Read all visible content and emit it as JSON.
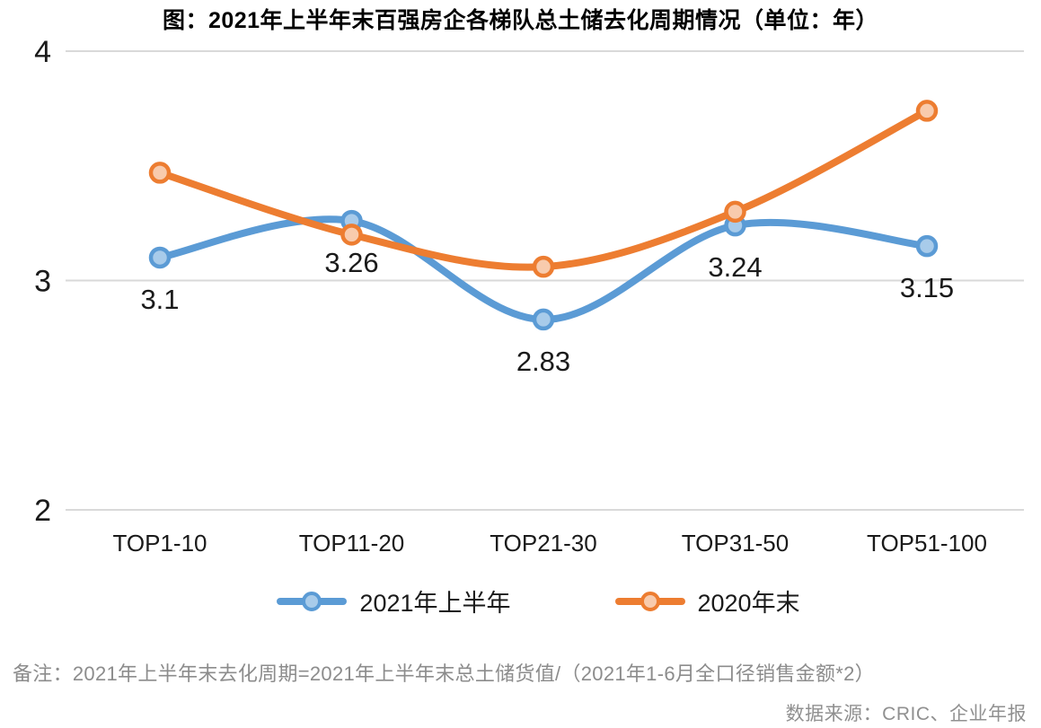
{
  "title": "图：2021年上半年末百强房企各梯队总土储去化周期情况（单位：年）",
  "footnote": "备注：2021年上半年末去化周期=2021年上半年末总土储货值/（2021年1-6月全口径销售金额*2）",
  "source": "数据来源：CRIC、企业年报",
  "colors": {
    "series_blue": "#5B9BD5",
    "series_blue_fill": "#A8CBEA",
    "series_orange": "#ED7D31",
    "series_orange_fill": "#F8CBAD",
    "gridline": "#D9D9D9",
    "axis_text": "#1a1a1a",
    "data_label": "#1a1a1a"
  },
  "chart_data": {
    "type": "line",
    "title": "图：2021年上半年末百强房企各梯队总土储去化周期情况（单位：年）",
    "categories": [
      "TOP1-10",
      "TOP11-20",
      "TOP21-30",
      "TOP31-50",
      "TOP51-100"
    ],
    "series": [
      {
        "name": "2021年上半年",
        "values": [
          3.1,
          3.26,
          2.83,
          3.24,
          3.15
        ],
        "data_labels": [
          "3.1",
          "3.26",
          "2.83",
          "3.24",
          "3.15"
        ],
        "color": "#5B9BD5",
        "marker_fill": "#A8CBEA"
      },
      {
        "name": "2020年末",
        "values": [
          3.47,
          3.2,
          3.06,
          3.3,
          3.74
        ],
        "data_labels": null,
        "color": "#ED7D31",
        "marker_fill": "#F8CBAD"
      }
    ],
    "xlabel": "",
    "ylabel": "",
    "ylim": [
      2,
      4
    ],
    "yticks": [
      4,
      3,
      2
    ],
    "grid": "horizontal-only",
    "legend_position": "bottom",
    "line_style": "smooth",
    "unit": "年"
  }
}
